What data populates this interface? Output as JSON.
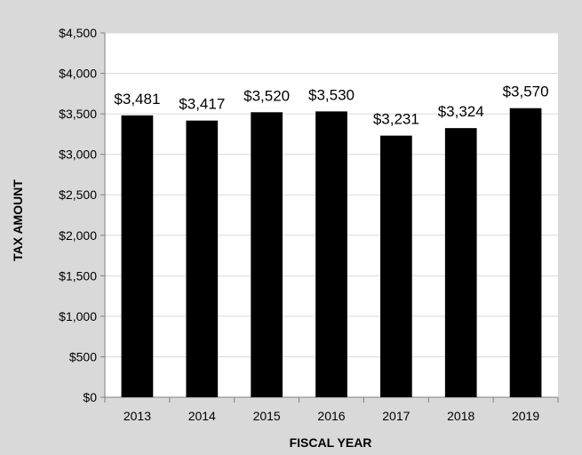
{
  "chart_data": {
    "type": "bar",
    "title": "",
    "xlabel": "FISCAL YEAR",
    "ylabel": "TAX AMOUNT",
    "categories": [
      "2013",
      "2014",
      "2015",
      "2016",
      "2017",
      "2018",
      "2019"
    ],
    "values": [
      3481,
      3417,
      3520,
      3530,
      3231,
      3324,
      3570
    ],
    "data_labels": [
      "$3,481",
      "$3,417",
      "$3,520",
      "$3,530",
      "$3,231",
      "$3,324",
      "$3,570"
    ],
    "ylim": [
      0,
      4500
    ],
    "yticks": [
      0,
      500,
      1000,
      1500,
      2000,
      2500,
      3000,
      3500,
      4000,
      4500
    ],
    "ytick_labels": [
      "$0",
      "$500",
      "$1,000",
      "$1,500",
      "$2,000",
      "$2,500",
      "$3,000",
      "$3,500",
      "$4,000",
      "$4,500"
    ],
    "grid": true,
    "legend": "none",
    "colors": {
      "bar": "#000000",
      "background": "#d9d9d9",
      "plot_area": "#ffffff",
      "grid": "#d9d9d9"
    }
  }
}
